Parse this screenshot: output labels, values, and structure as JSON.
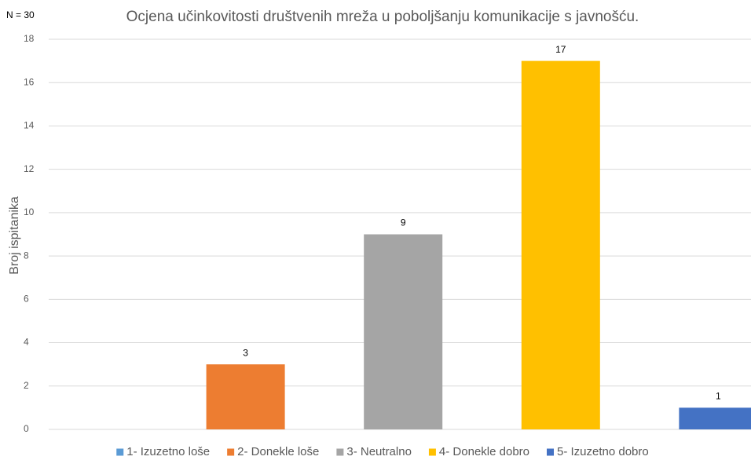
{
  "chart_data": {
    "type": "bar",
    "title": "Ocjena učinkovitosti društvenih mreža u poboljšanju komunikacije s javnošću.",
    "annotation": "N = 30",
    "ylabel": "Broj ispitanika",
    "categories": [
      "1- Izuzetno loše",
      "2- Donekle loše",
      "3- Neutralno",
      "4- Donekle dobro",
      "5- Izuzetno dobro"
    ],
    "values": [
      0,
      3,
      9,
      17,
      1
    ],
    "colors": [
      "#5b9bd5",
      "#ed7d31",
      "#a5a5a5",
      "#ffc000",
      "#4472c4"
    ],
    "ylim": [
      0,
      18
    ],
    "yticks": [
      0,
      2,
      4,
      6,
      8,
      10,
      12,
      14,
      16,
      18
    ],
    "grid": true,
    "legend": "bottom"
  }
}
